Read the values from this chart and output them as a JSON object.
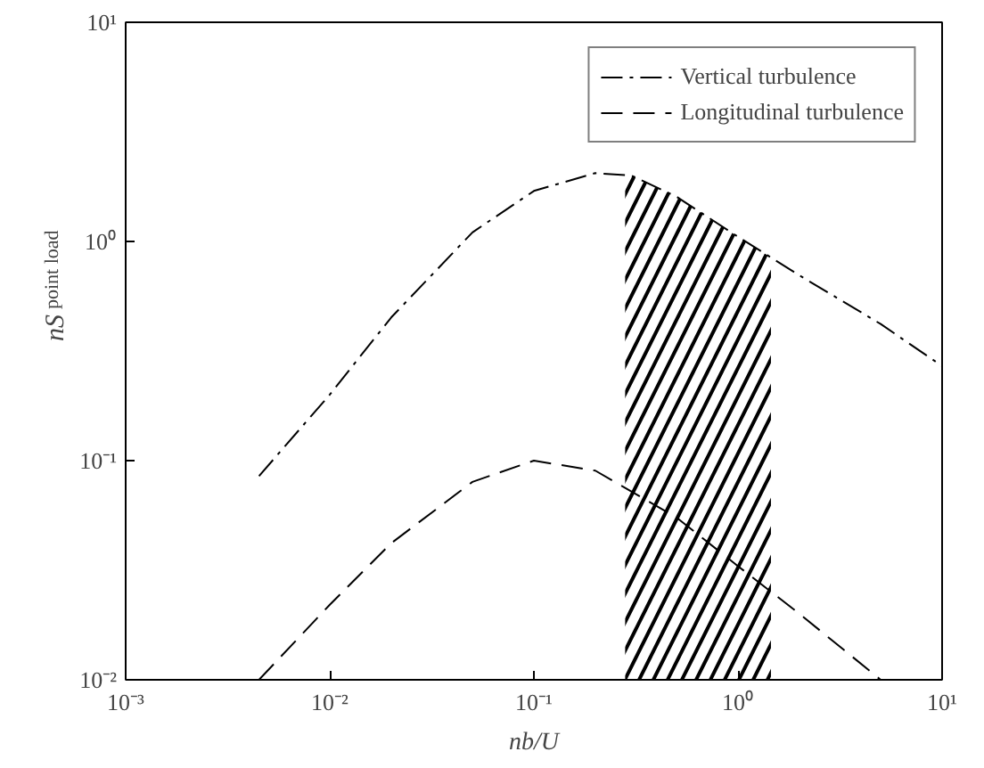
{
  "chart_data": {
    "type": "line",
    "xlabel": "nb/U",
    "ylabel": "nS$_{point load}$",
    "log": "xy",
    "grid": false,
    "legend": "top right",
    "xlim": [
      0.001,
      10
    ],
    "ylim": [
      0.01,
      10
    ],
    "xticks": [
      {
        "value": 0.001,
        "label": "10⁻³"
      },
      {
        "value": 0.01,
        "label": "10⁻²"
      },
      {
        "value": 0.1,
        "label": "10⁻¹"
      },
      {
        "value": 1,
        "label": "10⁰"
      },
      {
        "value": 10,
        "label": "10¹"
      }
    ],
    "yticks": [
      {
        "value": 0.01,
        "label": "10⁻²"
      },
      {
        "value": 0.1,
        "label": "10⁻¹"
      },
      {
        "value": 1,
        "label": "10⁰"
      },
      {
        "value": 10,
        "label": "10¹"
      }
    ],
    "series": [
      {
        "name": "Vertical turbulence",
        "color": "#000000",
        "line_style": "dashdot",
        "x": [
          0.0045,
          0.01,
          0.02,
          0.05,
          0.1,
          0.2,
          0.3,
          0.5,
          1,
          2,
          5,
          10
        ],
        "values": [
          0.085,
          0.2,
          0.45,
          1.1,
          1.7,
          2.05,
          2.0,
          1.6,
          1.05,
          0.7,
          0.42,
          0.27
        ]
      },
      {
        "name": "Longitudinal turbulence",
        "color": "#000000",
        "line_style": "dashed",
        "x": [
          0.0045,
          0.01,
          0.02,
          0.05,
          0.1,
          0.2,
          0.5,
          1,
          2,
          5
        ],
        "values": [
          0.01,
          0.022,
          0.042,
          0.08,
          0.1,
          0.09,
          0.055,
          0.033,
          0.02,
          0.01
        ]
      }
    ],
    "bands": [
      {
        "axis": "x",
        "from": 0.28,
        "to": 1.45,
        "color": "#000000"
      }
    ]
  }
}
